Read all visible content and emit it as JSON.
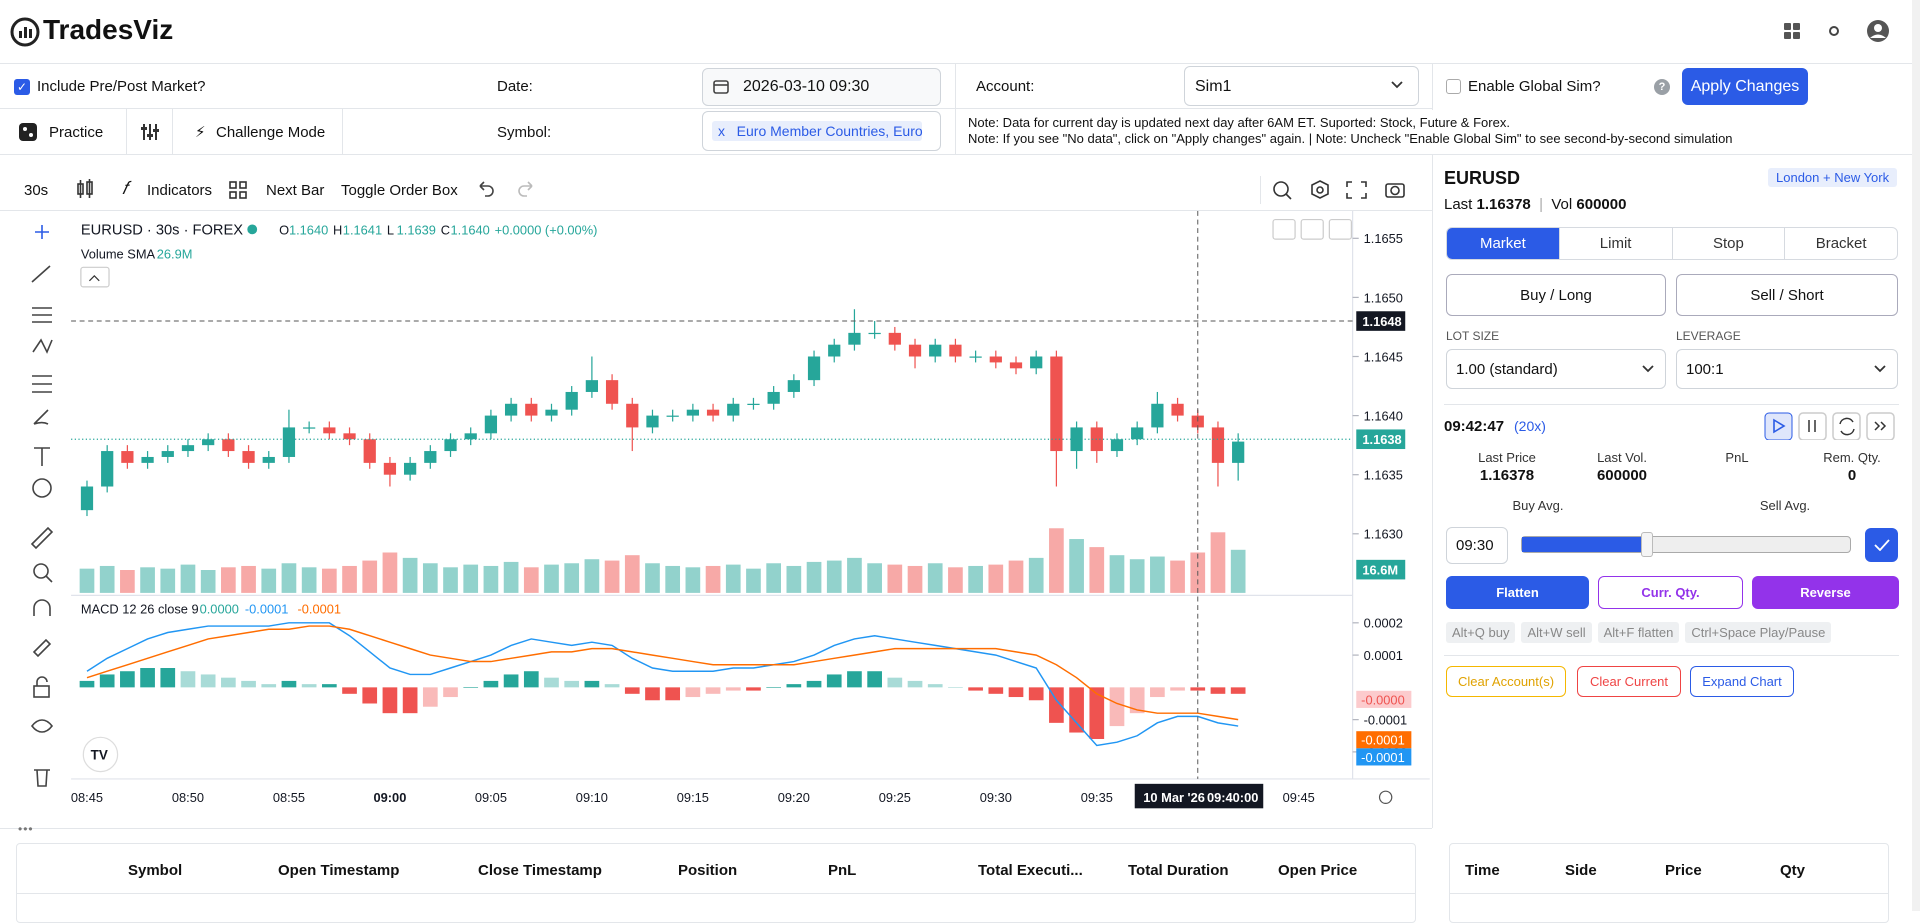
{
  "header": {
    "brand": "TradesViz"
  },
  "settings": {
    "include_prepost": "Include Pre/Post Market?",
    "date_label": "Date:",
    "date": "2026-03-10 09:30",
    "account_label": "Account:",
    "account": "Sim1",
    "global_sim": "Enable Global Sim?",
    "help": "?",
    "apply": "Apply Changes",
    "practice": "Practice",
    "challenge": "Challenge Mode",
    "symbol_label": "Symbol:",
    "symbol_remove": "x",
    "symbol": "Euro Member Countries, Euro",
    "notes": [
      "Note: Data for current day is updated next day after 6AM ET. Suported: Stock, Future & Forex.",
      "Note: If you see \"No data\", click on \"Apply changes\" again. | Note: Uncheck \"Enable Global Sim\" to see second-by-second simulation"
    ]
  },
  "toolbar": {
    "interval": "30s",
    "indicators": "Indicators",
    "next_bar": "Next Bar",
    "toggle_order_box": "Toggle Order Box"
  },
  "chart_data": {
    "type": "candlestick",
    "title": "EURUSD · 30s · FOREX",
    "ohlc_legend": [
      [
        "O",
        "1.1640"
      ],
      [
        "H",
        "1.1641"
      ],
      [
        "L",
        "1.1639"
      ],
      [
        "C",
        "1.1640"
      ]
    ],
    "change": "+0.0000 (+0.00%)",
    "volume_label": "Volume SMA",
    "volume_sma": "26.9M",
    "up_color": "#26a69a",
    "down_color": "#ef5350",
    "categories": [
      "08:45",
      null,
      null,
      null,
      null,
      "08:50",
      null,
      null,
      null,
      null,
      "08:55",
      null,
      null,
      null,
      null,
      "09:00",
      null,
      null,
      null,
      null,
      "09:05",
      null,
      null,
      null,
      null,
      "09:10",
      null,
      null,
      null,
      null,
      "09:15",
      null,
      null,
      null,
      null,
      "09:20",
      null,
      null,
      null,
      null,
      "09:25",
      null,
      null,
      null,
      null,
      "09:30",
      null,
      null,
      null,
      null,
      "09:35",
      null,
      null,
      null,
      null,
      null,
      null,
      null,
      null,
      null,
      "09:45"
    ],
    "open": [
      1.1632,
      1.1634,
      1.1637,
      1.1636,
      1.16365,
      1.1637,
      1.16375,
      1.1638,
      1.1637,
      1.1636,
      1.16365,
      1.1639,
      1.1639,
      1.16385,
      1.1638,
      1.1636,
      1.1635,
      1.1636,
      1.1637,
      1.1638,
      1.16385,
      1.164,
      1.1641,
      1.164,
      1.16405,
      1.1642,
      1.1643,
      1.1641,
      1.1639,
      1.164,
      1.164,
      1.16405,
      1.164,
      1.1641,
      1.1641,
      1.1642,
      1.1643,
      1.1645,
      1.1646,
      1.1647,
      1.1647,
      1.1646,
      1.1645,
      1.1646,
      1.1645,
      1.1645,
      1.16445,
      1.1644,
      1.1645,
      1.1637,
      1.1639,
      1.1637,
      1.1638,
      1.1639,
      1.1641,
      1.164,
      1.1639,
      1.1636,
      null,
      null,
      null
    ],
    "high": [
      1.16345,
      1.16375,
      1.16375,
      1.1637,
      1.16375,
      1.1638,
      1.16385,
      1.16385,
      1.16375,
      1.1637,
      1.16405,
      1.16395,
      1.16395,
      1.1639,
      1.16385,
      1.16365,
      1.16365,
      1.16375,
      1.16385,
      1.1639,
      1.16405,
      1.16415,
      1.16415,
      1.1641,
      1.16425,
      1.1645,
      1.16435,
      1.16415,
      1.16405,
      1.16405,
      1.1641,
      1.1641,
      1.16415,
      1.16415,
      1.16425,
      1.16435,
      1.16455,
      1.16465,
      1.1649,
      1.1648,
      1.16475,
      1.16465,
      1.16465,
      1.16465,
      1.16455,
      1.16455,
      1.1645,
      1.16455,
      1.16455,
      1.16395,
      1.16395,
      1.16385,
      1.16395,
      1.1642,
      1.16415,
      1.16405,
      1.16395,
      1.16385,
      null,
      null,
      null
    ],
    "low": [
      1.16315,
      1.16335,
      1.16355,
      1.16355,
      1.1636,
      1.16365,
      1.1637,
      1.16365,
      1.16355,
      1.16355,
      1.1636,
      1.16385,
      1.1638,
      1.16375,
      1.16355,
      1.1634,
      1.16345,
      1.16355,
      1.16365,
      1.16375,
      1.1638,
      1.16395,
      1.16395,
      1.16395,
      1.164,
      1.16415,
      1.16405,
      1.1637,
      1.16385,
      1.16395,
      1.16395,
      1.16395,
      1.16395,
      1.16405,
      1.16405,
      1.16415,
      1.16425,
      1.16445,
      1.16455,
      1.16465,
      1.16455,
      1.1644,
      1.16445,
      1.16445,
      1.16445,
      1.1644,
      1.16435,
      1.16435,
      1.1634,
      1.16355,
      1.1636,
      1.16365,
      1.16375,
      1.16385,
      1.16395,
      1.16385,
      1.1634,
      1.16345,
      null,
      null,
      null
    ],
    "close": [
      1.1634,
      1.1637,
      1.1636,
      1.16365,
      1.1637,
      1.16375,
      1.1638,
      1.1637,
      1.1636,
      1.16365,
      1.1639,
      1.1639,
      1.16385,
      1.1638,
      1.1636,
      1.1635,
      1.1636,
      1.1637,
      1.1638,
      1.16385,
      1.164,
      1.1641,
      1.164,
      1.16405,
      1.1642,
      1.1643,
      1.1641,
      1.1639,
      1.164,
      1.164,
      1.16405,
      1.164,
      1.1641,
      1.1641,
      1.1642,
      1.1643,
      1.1645,
      1.1646,
      1.1647,
      1.1647,
      1.1646,
      1.1645,
      1.1646,
      1.1645,
      1.1645,
      1.16445,
      1.1644,
      1.1645,
      1.1637,
      1.1639,
      1.1637,
      1.1638,
      1.1639,
      1.1641,
      1.164,
      1.1639,
      1.1636,
      1.16378,
      null,
      null,
      null
    ],
    "volume": [
      18,
      20,
      17,
      19,
      18,
      21,
      17,
      19,
      20,
      18,
      22,
      19,
      18,
      20,
      24,
      30,
      26,
      22,
      19,
      21,
      20,
      23,
      19,
      21,
      22,
      25,
      24,
      28,
      22,
      20,
      19,
      20,
      21,
      18,
      22,
      20,
      23,
      24,
      26,
      22,
      21,
      20,
      22,
      19,
      20,
      21,
      24,
      26,
      48,
      40,
      34,
      28,
      25,
      27,
      24,
      30,
      45,
      32,
      null,
      null,
      null
    ],
    "ylim": [
      1.1625,
      1.1657
    ],
    "yticks": [
      {
        "value": 1.163,
        "label": "1.1630"
      },
      1.1635,
      {
        "value": 1.164,
        "label": "1.1640"
      },
      1.1645,
      {
        "value": 1.165,
        "label": "1.1650"
      },
      1.1655
    ],
    "crosshair_price": 1.1648,
    "last_price": 1.1638,
    "volume_current": "16.6M",
    "crosshair_date": "10 Mar '26",
    "crosshair_time": "09:40:00",
    "macd": {
      "label": "MACD 12 26 close 9",
      "legend": [
        "0.0000",
        "-0.0001",
        "-0.0001"
      ],
      "axis_labels": [
        "-0.0000",
        "-0.0001",
        "-0.0001"
      ],
      "macd_color": "#2196f3",
      "signal_color": "#ff6d00",
      "ylim": [
        -0.00028,
        0.00027
      ],
      "yticks": [
        0.0002,
        0.0001,
        -0.0001,
        -0.0002
      ],
      "macd": [
        5e-05,
        9e-05,
        0.00012,
        0.00015,
        0.00017,
        0.00018,
        0.00019,
        0.00019,
        0.00019,
        0.00019,
        0.0002,
        0.0002,
        0.0002,
        0.00016,
        0.00011,
        6e-05,
        4e-05,
        4e-05,
        6e-05,
        8e-05,
        0.0001,
        0.00013,
        0.00015,
        0.00014,
        0.00013,
        0.00014,
        0.00013,
        9e-05,
        6e-05,
        5e-05,
        5e-05,
        5e-05,
        6e-05,
        6e-05,
        7e-05,
        8e-05,
        0.0001,
        0.00013,
        0.00015,
        0.00016,
        0.00015,
        0.00014,
        0.00013,
        0.00012,
        0.00011,
        0.0001,
        8e-05,
        6e-05,
        -4e-05,
        -0.00011,
        -0.00018,
        -0.00017,
        -0.00015,
        -0.00011,
        -9e-05,
        -9e-05,
        -0.00011,
        -0.00012,
        null,
        null,
        null
      ],
      "signal": [
        3e-05,
        5e-05,
        7e-05,
        9e-05,
        0.00011,
        0.00013,
        0.00015,
        0.00016,
        0.00017,
        0.00018,
        0.00018,
        0.00019,
        0.00019,
        0.00018,
        0.00016,
        0.00014,
        0.00012,
        0.0001,
        9e-05,
        8e-05,
        8e-05,
        9e-05,
        0.0001,
        0.00011,
        0.00011,
        0.00012,
        0.00012,
        0.00011,
        0.0001,
        9e-05,
        8e-05,
        7e-05,
        7e-05,
        7e-05,
        7e-05,
        7e-05,
        8e-05,
        9e-05,
        0.0001,
        0.00011,
        0.00012,
        0.00012,
        0.00012,
        0.00012,
        0.00012,
        0.00012,
        0.00011,
        0.0001,
        7e-05,
        3e-05,
        -2e-05,
        -5e-05,
        -7e-05,
        -8e-05,
        -8e-05,
        -8e-05,
        -9e-05,
        -0.0001,
        null,
        null,
        null
      ],
      "histogram": [
        2e-05,
        4e-05,
        5e-05,
        6e-05,
        6e-05,
        5e-05,
        4e-05,
        3e-05,
        2e-05,
        1e-05,
        2e-05,
        1e-05,
        1e-05,
        -2e-05,
        -5e-05,
        -8e-05,
        -8e-05,
        -6e-05,
        -3e-05,
        0,
        2e-05,
        4e-05,
        5e-05,
        3e-05,
        2e-05,
        2e-05,
        1e-05,
        -2e-05,
        -4e-05,
        -4e-05,
        -3e-05,
        -2e-05,
        -1e-05,
        -1e-05,
        0,
        1e-05,
        2e-05,
        4e-05,
        5e-05,
        5e-05,
        3e-05,
        2e-05,
        1e-05,
        0,
        -1e-05,
        -2e-05,
        -3e-05,
        -4e-05,
        -0.00011,
        -0.00014,
        -0.00016,
        -0.00012,
        -8e-05,
        -3e-05,
        -1e-05,
        -1e-05,
        -2e-05,
        -2e-05,
        null,
        null,
        null
      ]
    }
  },
  "order_panel": {
    "symbol": "EURUSD",
    "session": "London + New York",
    "last_label": "Last",
    "last": "1.16378",
    "vol_label": "Vol",
    "vol": "600000",
    "tabs": [
      "Market",
      "Limit",
      "Stop",
      "Bracket"
    ],
    "buy": "Buy / Long",
    "sell": "Sell / Short",
    "lot_label": "LOT SIZE",
    "lot": "1.00 (standard)",
    "leverage_label": "LEVERAGE",
    "leverage": "100:1",
    "clock": "09:42:47",
    "speed": "(20x)",
    "stats": [
      [
        "Last Price",
        "1.16378"
      ],
      [
        "Last Vol.",
        "600000"
      ],
      [
        "PnL",
        null
      ],
      [
        "Rem. Qty.",
        "0"
      ]
    ],
    "buy_avg": "Buy Avg.",
    "sell_avg": "Sell Avg.",
    "start_time": "09:30",
    "flatten": "Flatten",
    "curr_qty": "Curr. Qty.",
    "reverse": "Reverse",
    "shortcuts": [
      "Alt+Q buy",
      "Alt+W sell",
      "Alt+F flatten",
      "Ctrl+Space Play/Pause"
    ],
    "clear_accounts": "Clear Account(s)",
    "clear_current": "Clear Current",
    "expand_chart": "Expand Chart"
  },
  "trades_table": {
    "columns": [
      "Symbol",
      "Open Timestamp",
      "Close Timestamp",
      "Position",
      "PnL",
      "Total Executi...",
      "Total Duration",
      "Open Price"
    ]
  },
  "executions_table": {
    "columns": [
      "Time",
      "Side",
      "Price",
      "Qty"
    ]
  }
}
